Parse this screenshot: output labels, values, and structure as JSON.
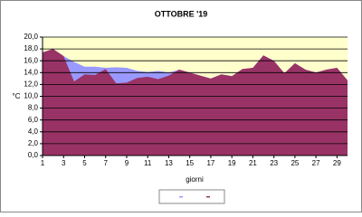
{
  "chart_data": {
    "type": "area",
    "title": "OTTOBRE '19",
    "x_label": "giorni",
    "y_label": "°C",
    "x": [
      1,
      2,
      3,
      4,
      5,
      6,
      7,
      8,
      9,
      10,
      11,
      12,
      13,
      14,
      15,
      16,
      17,
      18,
      19,
      20,
      21,
      22,
      23,
      24,
      25,
      26,
      27,
      28,
      29,
      30
    ],
    "xlim": [
      1,
      30
    ],
    "xticks": [
      1,
      3,
      5,
      7,
      9,
      11,
      13,
      15,
      17,
      19,
      21,
      23,
      25,
      27,
      29
    ],
    "ylim": [
      0,
      20
    ],
    "yticks": [
      {
        "value": 0,
        "label": "0,0"
      },
      {
        "value": 2,
        "label": "2,0"
      },
      {
        "value": 4,
        "label": "4,0"
      },
      {
        "value": 6,
        "label": "6,0"
      },
      {
        "value": 8,
        "label": "8,0"
      },
      {
        "value": 10,
        "label": "10,0"
      },
      {
        "value": 12,
        "label": "12,0"
      },
      {
        "value": 14,
        "label": "14,0"
      },
      {
        "value": 16,
        "label": "16,0"
      },
      {
        "value": 18,
        "label": "18,0"
      },
      {
        "value": 20,
        "label": "20,0"
      }
    ],
    "grid": true,
    "series": [
      {
        "color": "#9999ff",
        "values": [
          17.4,
          18.0,
          16.8,
          15.8,
          15.0,
          15.0,
          14.8,
          14.9,
          14.8,
          14.3,
          14.1,
          14.3,
          14.0,
          14.5,
          14.0,
          13.5,
          13.0,
          13.7,
          13.4,
          14.6,
          14.8,
          16.9,
          16.0,
          13.9,
          15.6,
          14.5,
          14.0,
          14.5,
          14.8,
          12.7
        ]
      },
      {
        "color": "#993366",
        "values": [
          17.4,
          18.0,
          16.8,
          12.5,
          13.7,
          13.6,
          14.6,
          12.2,
          12.3,
          13.1,
          13.3,
          12.9,
          13.5,
          14.5,
          14.0,
          13.5,
          13.0,
          13.7,
          13.4,
          14.6,
          14.8,
          16.9,
          16.0,
          13.9,
          15.6,
          14.5,
          14.0,
          14.5,
          14.8,
          12.7
        ]
      }
    ]
  }
}
